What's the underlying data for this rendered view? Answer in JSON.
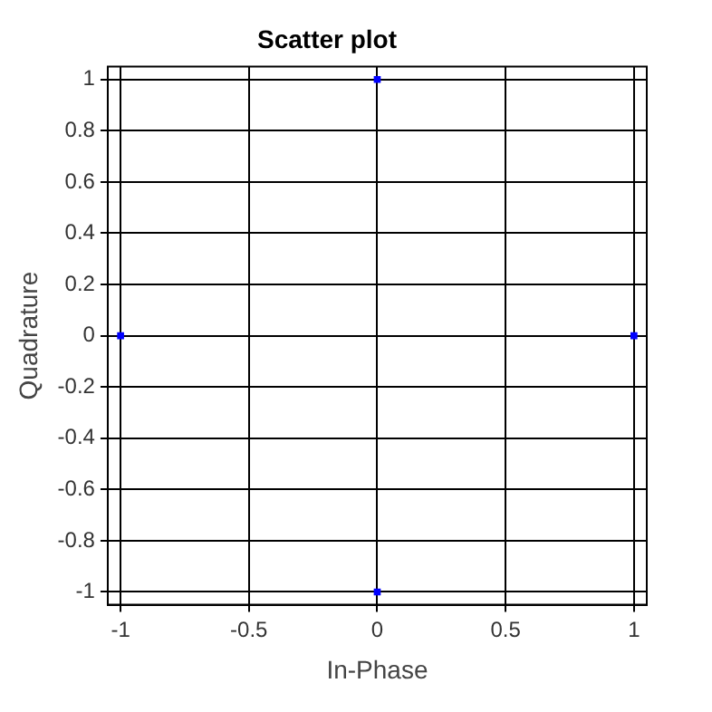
{
  "chart_data": {
    "type": "scatter",
    "title": "Scatter plot",
    "xlabel": "In-Phase",
    "ylabel": "Quadrature",
    "x": [
      1,
      0,
      -1,
      0
    ],
    "series": [
      {
        "color": "#0000ff",
        "values": [
          0,
          1,
          0,
          -1
        ]
      }
    ],
    "xlim": [
      -1.05,
      1.05
    ],
    "xticks": [
      -1,
      -0.5,
      0,
      0.5,
      1
    ],
    "ylim": [
      -1.05,
      1.05
    ],
    "yticks": [
      -1,
      -0.8,
      -0.6,
      -0.4,
      -0.2,
      0,
      0.2,
      0.4,
      0.6,
      0.8,
      1
    ],
    "grid": true,
    "legend": false,
    "marker": "square"
  }
}
